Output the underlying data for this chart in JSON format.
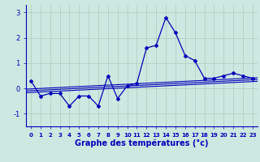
{
  "x": [
    0,
    1,
    2,
    3,
    4,
    5,
    6,
    7,
    8,
    9,
    10,
    11,
    12,
    13,
    14,
    15,
    16,
    17,
    18,
    19,
    20,
    21,
    22,
    23
  ],
  "temperature": [
    0.3,
    -0.3,
    -0.2,
    -0.2,
    -0.7,
    -0.3,
    -0.3,
    -0.7,
    0.5,
    -0.4,
    0.1,
    0.2,
    1.6,
    1.7,
    2.8,
    2.2,
    1.3,
    1.1,
    0.4,
    0.4,
    0.5,
    0.6,
    0.5,
    0.4
  ],
  "trend_y_start": -0.1,
  "trend_y_end": 0.35,
  "trend_offsets": [
    -0.07,
    0.0,
    0.07
  ],
  "background_color": "#cce8e0",
  "grid_color": "#aaccbb",
  "line_color": "#0000bb",
  "xlabel": "Graphe des températures (°c)",
  "ylim": [
    -1.5,
    3.3
  ],
  "xlim": [
    -0.5,
    23.5
  ],
  "yticks": [
    -1,
    0,
    1,
    2,
    3
  ],
  "xticks": [
    0,
    1,
    2,
    3,
    4,
    5,
    6,
    7,
    8,
    9,
    10,
    11,
    12,
    13,
    14,
    15,
    16,
    17,
    18,
    19,
    20,
    21,
    22,
    23
  ]
}
